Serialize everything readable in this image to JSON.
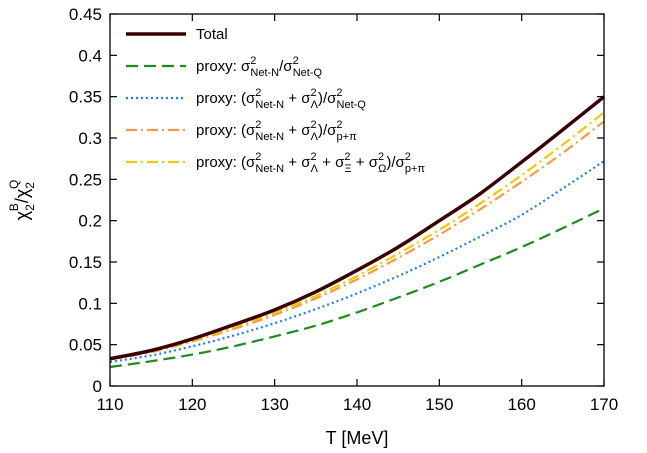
{
  "chart_data": {
    "type": "line",
    "title": "",
    "xlabel": "T [MeV]",
    "ylabel": {
      "chi": "χ",
      "sub": "2",
      "sup_b": "B",
      "slash": "/",
      "sup_q": "Q"
    },
    "xlim": [
      110,
      170
    ],
    "ylim": [
      0,
      0.45
    ],
    "xticks": [
      110,
      120,
      130,
      140,
      150,
      160,
      170
    ],
    "xtick_labels": [
      "110",
      "120",
      "130",
      "140",
      "150",
      "160",
      "170"
    ],
    "yticks": [
      0,
      0.05,
      0.1,
      0.15,
      0.2,
      0.25,
      0.3,
      0.35,
      0.4,
      0.45
    ],
    "ytick_labels": [
      "0",
      "0.05",
      "0.1",
      "0.15",
      "0.2",
      "0.25",
      "0.3",
      "0.35",
      "0.4",
      "0.45"
    ],
    "grid": false,
    "legend_position": "top-left",
    "x": [
      110,
      115,
      120,
      125,
      130,
      135,
      140,
      145,
      150,
      155,
      160,
      165,
      170
    ],
    "series": [
      {
        "key": "total",
        "legend": {
          "segments": [
            {
              "t": "Total"
            }
          ]
        },
        "color": "#3a0000",
        "dash": "",
        "width": 3.5,
        "values": [
          0.033,
          0.043,
          0.057,
          0.074,
          0.092,
          0.114,
          0.14,
          0.168,
          0.2,
          0.233,
          0.271,
          0.31,
          0.35
        ]
      },
      {
        "key": "proxy-netn-netq",
        "legend": {
          "segments": [
            {
              "t": "proxy: σ"
            },
            {
              "t": "2",
              "sup": true
            },
            {
              "t": "Net-N",
              "sub": true
            },
            {
              "t": "/σ"
            },
            {
              "t": "2",
              "sup": true
            },
            {
              "t": "Net-Q",
              "sub": true
            }
          ]
        },
        "color": "#1f8a1f",
        "dash": "12,6",
        "width": 2.2,
        "values": [
          0.023,
          0.03,
          0.038,
          0.048,
          0.06,
          0.073,
          0.089,
          0.107,
          0.126,
          0.147,
          0.168,
          0.191,
          0.215
        ]
      },
      {
        "key": "proxy-netn-lambda-netq",
        "legend": {
          "segments": [
            {
              "t": "proxy: (σ"
            },
            {
              "t": "2",
              "sup": true
            },
            {
              "t": "Net-N",
              "sub": true
            },
            {
              "t": " + σ"
            },
            {
              "t": "2",
              "sup": true
            },
            {
              "t": "Λ",
              "sub": true
            },
            {
              "t": ")/σ"
            },
            {
              "t": "2",
              "sup": true
            },
            {
              "t": "Net-Q",
              "sub": true
            }
          ]
        },
        "color": "#1f7fe0",
        "dash": "2,3",
        "width": 2.2,
        "values": [
          0.029,
          0.037,
          0.048,
          0.061,
          0.076,
          0.093,
          0.112,
          0.133,
          0.156,
          0.181,
          0.207,
          0.239,
          0.272
        ]
      },
      {
        "key": "proxy-netn-lambda-ppi",
        "legend": {
          "segments": [
            {
              "t": "proxy: (σ"
            },
            {
              "t": "2",
              "sup": true
            },
            {
              "t": "Net-N",
              "sub": true
            },
            {
              "t": " + σ"
            },
            {
              "t": "2",
              "sup": true
            },
            {
              "t": "Λ",
              "sub": true
            },
            {
              "t": ")/σ"
            },
            {
              "t": "2",
              "sup": true
            },
            {
              "t": "p+π",
              "sub": true
            }
          ]
        },
        "color": "#f29a4b",
        "dash": "11,4,2,4",
        "width": 2.2,
        "values": [
          0.032,
          0.041,
          0.054,
          0.069,
          0.086,
          0.106,
          0.129,
          0.155,
          0.183,
          0.214,
          0.247,
          0.282,
          0.32
        ]
      },
      {
        "key": "proxy-netn-lambda-xi-omega-ppi",
        "legend": {
          "segments": [
            {
              "t": "proxy: (σ"
            },
            {
              "t": "2",
              "sup": true
            },
            {
              "t": "Net-N",
              "sub": true
            },
            {
              "t": " + σ"
            },
            {
              "t": "2",
              "sup": true
            },
            {
              "t": "Λ",
              "sub": true
            },
            {
              "t": " + σ"
            },
            {
              "t": "2",
              "sup": true
            },
            {
              "t": "Ξ",
              "sub": true
            },
            {
              "t": " + σ"
            },
            {
              "t": "2",
              "sup": true
            },
            {
              "t": "Ω",
              "sub": true
            },
            {
              "t": ")/σ"
            },
            {
              "t": "2",
              "sup": true
            },
            {
              "t": "p+π",
              "sub": true
            }
          ]
        },
        "color": "#f0c800",
        "dash": "11,4,2,4",
        "width": 2.2,
        "values": [
          0.033,
          0.042,
          0.055,
          0.071,
          0.089,
          0.109,
          0.133,
          0.16,
          0.189,
          0.221,
          0.255,
          0.292,
          0.331
        ]
      }
    ]
  }
}
